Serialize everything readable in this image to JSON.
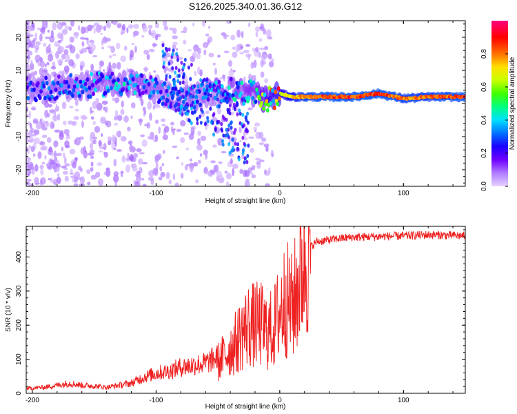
{
  "title": "S126.2025.340.01.36.G12",
  "chart_data": [
    {
      "type": "heatmap",
      "xlabel": "Height of straight line (km)",
      "ylabel": "Frequency (Hz)",
      "xlim": [
        -205,
        150
      ],
      "ylim": [
        -25,
        25
      ],
      "xticks": [
        -200,
        -100,
        0,
        100
      ],
      "yticks": [
        -20,
        -10,
        0,
        10,
        20
      ],
      "colorbar": {
        "label": "Normalized spectral amplitude",
        "range": [
          0,
          1
        ],
        "ticks": [
          0.0,
          0.2,
          0.4,
          0.6,
          0.8
        ],
        "tick_labels": [
          "0.0",
          "0.2",
          "0.4",
          "0.6",
          "0.8"
        ],
        "colors": [
          "#e6d2ff",
          "#b07cff",
          "#6f00ff",
          "#1a00ff",
          "#0070ff",
          "#00e0ff",
          "#00ff80",
          "#40ff00",
          "#c8ff00",
          "#ffe000",
          "#ff7000",
          "#ff0000",
          "#ff0080"
        ]
      },
      "ridge": {
        "description_points_x": [
          -200,
          -180,
          -160,
          -140,
          -120,
          -100,
          -80,
          -60,
          -40,
          -20,
          -10,
          0,
          10,
          20,
          40,
          60,
          80,
          100,
          120,
          150
        ],
        "description_points_freq": [
          4,
          5,
          5,
          6,
          6,
          4,
          1,
          3,
          4,
          3,
          1,
          3,
          2,
          2,
          2,
          2,
          3,
          1.5,
          2,
          2
        ],
        "description_points_amp": [
          0.25,
          0.3,
          0.3,
          0.35,
          0.35,
          0.3,
          0.3,
          0.3,
          0.35,
          0.4,
          0.6,
          0.7,
          0.75,
          0.85,
          0.9,
          0.9,
          0.9,
          0.85,
          0.85,
          0.9
        ]
      }
    },
    {
      "type": "line",
      "xlabel": "Height of straight line (km)",
      "ylabel": "SNR (10 * v/v)",
      "xlim": [
        -205,
        150
      ],
      "ylim": [
        0,
        490
      ],
      "xticks": [
        -200,
        -100,
        0,
        100
      ],
      "yticks": [
        0,
        100,
        200,
        300,
        400
      ],
      "color": "#ee2222",
      "series": [
        {
          "name": "SNR",
          "x": [
            -205,
            -190,
            -180,
            -170,
            -160,
            -150,
            -140,
            -130,
            -120,
            -110,
            -100,
            -90,
            -80,
            -70,
            -60,
            -50,
            -45,
            -40,
            -35,
            -30,
            -25,
            -20,
            -15,
            -10,
            -5,
            0,
            5,
            10,
            15,
            20,
            25,
            30,
            40,
            50,
            60,
            80,
            100,
            120,
            150
          ],
          "y": [
            12,
            15,
            20,
            25,
            20,
            18,
            15,
            20,
            25,
            40,
            50,
            55,
            65,
            70,
            75,
            90,
            110,
            130,
            150,
            180,
            200,
            200,
            200,
            180,
            190,
            240,
            280,
            250,
            320,
            400,
            430,
            445,
            450,
            455,
            458,
            460,
            462,
            465,
            462
          ]
        }
      ]
    }
  ]
}
